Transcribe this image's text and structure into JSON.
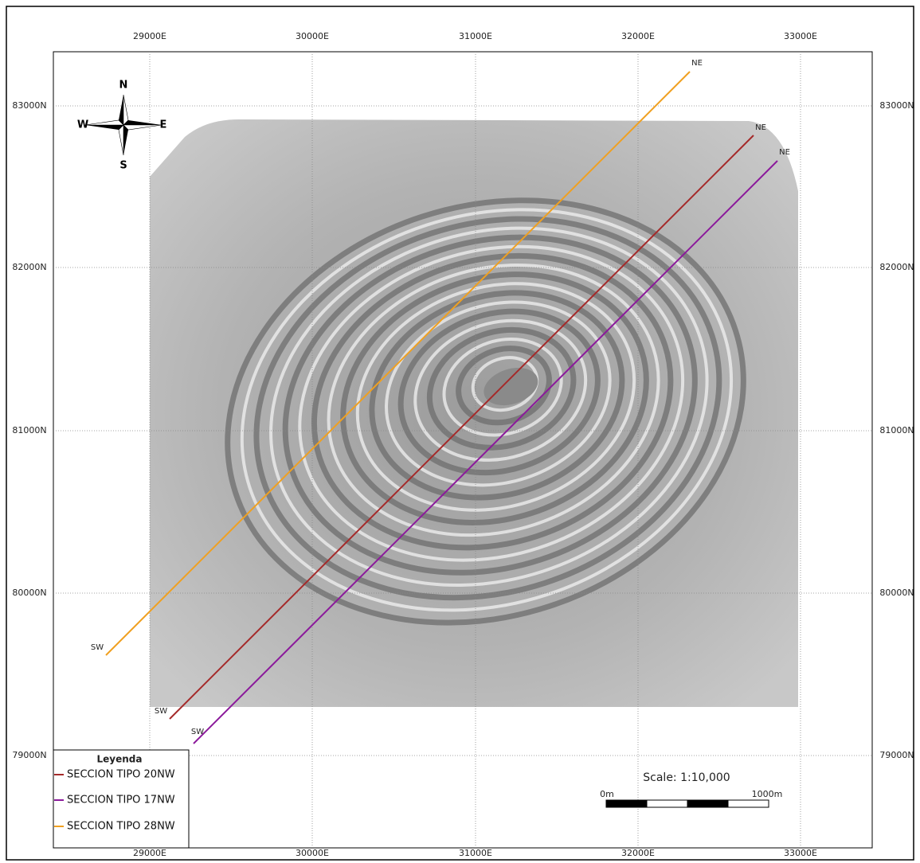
{
  "map": {
    "x_ticks": [
      "29000E",
      "30000E",
      "31000E",
      "32000E",
      "33000E"
    ],
    "y_ticks": [
      "83000N",
      "82000N",
      "81000N",
      "80000N",
      "79000N"
    ],
    "compass": {
      "n": "N",
      "s": "S",
      "w": "W",
      "e": "E"
    },
    "sections": [
      {
        "ne": "NE",
        "sw": "SW"
      },
      {
        "ne": "NE",
        "sw": "SW"
      },
      {
        "ne": "NE",
        "sw": "SW"
      }
    ],
    "legend": {
      "title": "Leyenda",
      "items": [
        {
          "label": "SECCION TIPO 20NW",
          "color": "#a52a2a"
        },
        {
          "label": "SECCION TIPO 17NW",
          "color": "#8b1a9b"
        },
        {
          "label": "SECCION TIPO 28NW",
          "color": "#f0a020"
        }
      ]
    },
    "scale": {
      "title": "Scale: 1:10,000",
      "start": "0m",
      "end": "1000m"
    }
  }
}
